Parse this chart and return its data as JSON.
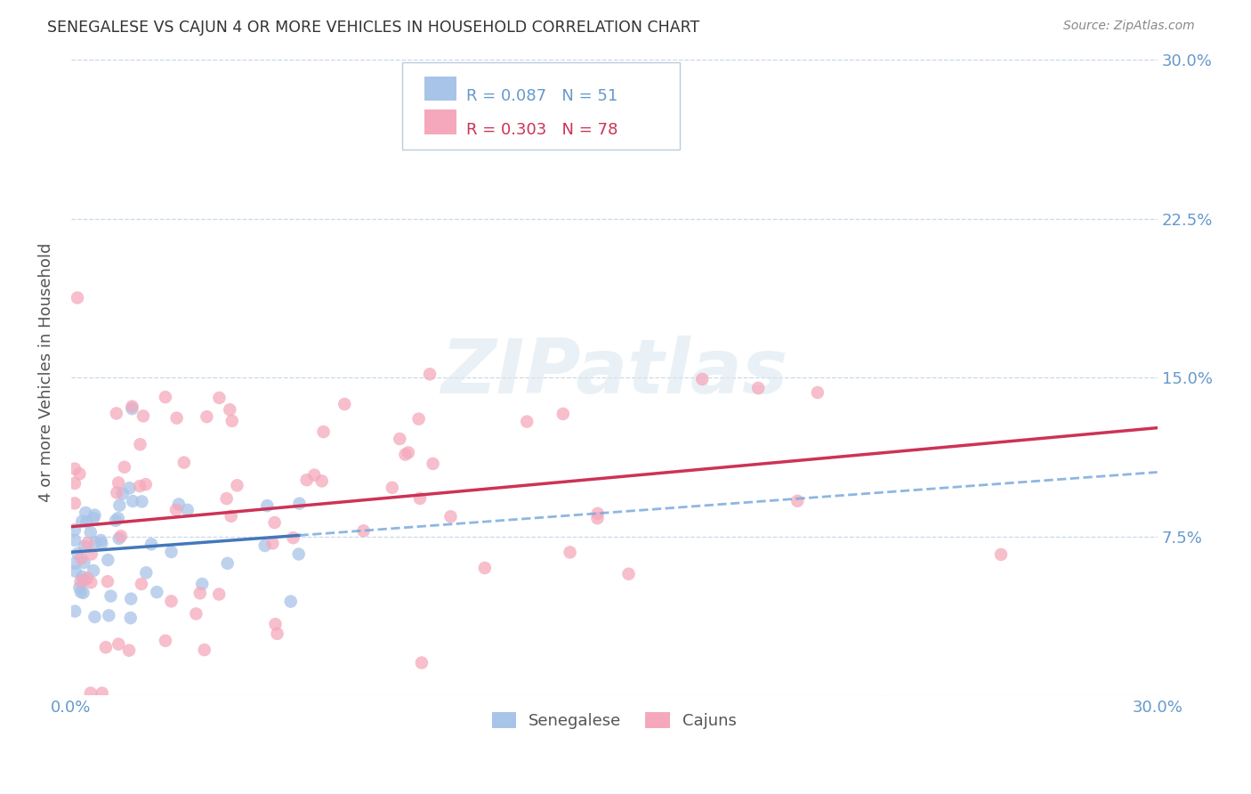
{
  "title": "SENEGALESE VS CAJUN 4 OR MORE VEHICLES IN HOUSEHOLD CORRELATION CHART",
  "source": "Source: ZipAtlas.com",
  "ylabel": "4 or more Vehicles in Household",
  "xlim": [
    0.0,
    0.3
  ],
  "ylim": [
    0.0,
    0.305
  ],
  "xtick_positions": [
    0.0,
    0.05,
    0.1,
    0.15,
    0.2,
    0.25,
    0.3
  ],
  "xtick_labels": [
    "0.0%",
    "",
    "",
    "",
    "",
    "",
    "30.0%"
  ],
  "ytick_positions": [
    0.0,
    0.075,
    0.15,
    0.225,
    0.3
  ],
  "ytick_right_labels": [
    "",
    "7.5%",
    "15.0%",
    "22.5%",
    "30.0%"
  ],
  "legend_blue_text": "R = 0.087   N = 51",
  "legend_pink_text": "R = 0.303   N = 78",
  "legend_label_blue": "Senegalese",
  "legend_label_pink": "Cajuns",
  "blue_scatter_color": "#a8c4e8",
  "pink_scatter_color": "#f5a8bc",
  "blue_line_color": "#4477bb",
  "pink_line_color": "#cc3355",
  "blue_dashed_color": "#7aaadd",
  "watermark_color": "#dde8f0",
  "grid_color": "#c8d8e8",
  "title_color": "#333333",
  "source_color": "#888888",
  "tick_color": "#6699cc",
  "ylabel_color": "#555555",
  "background_color": "#ffffff",
  "watermark_text": "ZIPatlas",
  "N_blue": 51,
  "N_pink": 78,
  "blue_R": 0.087,
  "pink_R": 0.303,
  "blue_seed": 42,
  "pink_seed": 99
}
